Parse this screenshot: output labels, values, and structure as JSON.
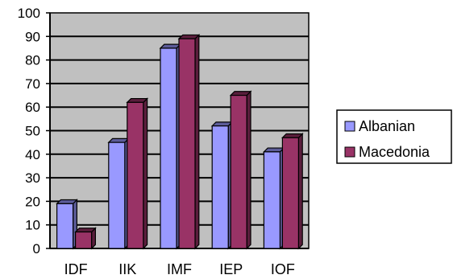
{
  "chart_data": {
    "type": "bar",
    "categories": [
      "IDF",
      "IIK",
      "IMF",
      "IEP",
      "IOF"
    ],
    "series": [
      {
        "name": "Albanian",
        "values": [
          19,
          45,
          85,
          52,
          41
        ],
        "color": "#9999ff",
        "side_color": "#5c5c99"
      },
      {
        "name": "Macedonia",
        "values": [
          7,
          62,
          89,
          65,
          47
        ],
        "color": "#993366",
        "side_color": "#5a1e3c"
      }
    ],
    "title": "",
    "xlabel": "",
    "ylabel": "",
    "ylim": [
      0,
      100
    ],
    "yticks": [
      0,
      10,
      20,
      30,
      40,
      50,
      60,
      70,
      80,
      90,
      100
    ],
    "grid": true,
    "legend": "right",
    "plot_background": "#c0c0c0"
  }
}
